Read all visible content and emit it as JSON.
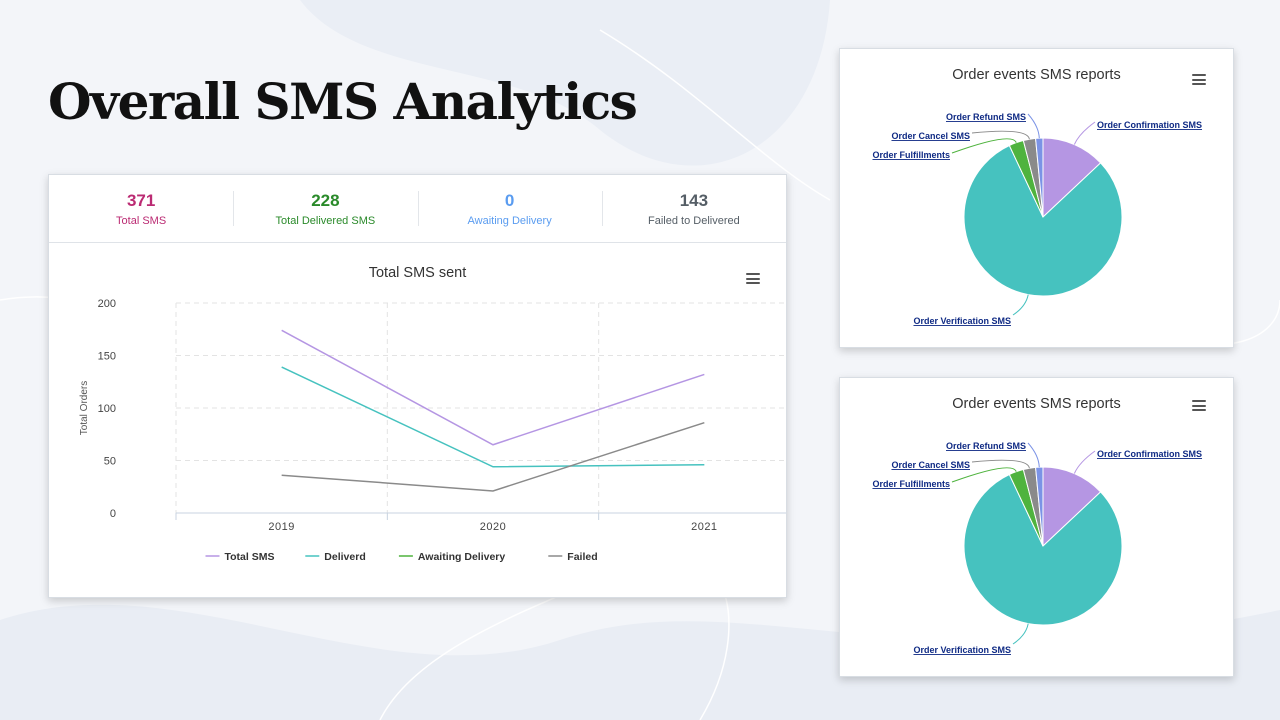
{
  "page": {
    "title": "Overall SMS Analytics"
  },
  "colors": {
    "total_sms": "#bb2b73",
    "delivered": "#2a8a2a",
    "awaiting": "#5a9cf0",
    "failed": "#555e66",
    "series_total": "#b596e3",
    "series_delivered": "#46c2bf",
    "series_awaiting": "#4fb33e",
    "series_failed": "#8a8a8a",
    "pie_label": "#0f2a84"
  },
  "stats": [
    {
      "value": "371",
      "label": "Total SMS"
    },
    {
      "value": "228",
      "label": "Total Delivered SMS"
    },
    {
      "value": "0",
      "label": "Awaiting Delivery"
    },
    {
      "value": "143",
      "label": "Failed to Delivered"
    }
  ],
  "menu_icon": "hamburger-menu-icon",
  "chart_data": [
    {
      "type": "line",
      "title": "Total SMS sent",
      "xlabel": "",
      "ylabel": "Total Orders",
      "categories": [
        "2019",
        "2020",
        "2021"
      ],
      "ylim": [
        0,
        200
      ],
      "yticks": [
        "0",
        "50",
        "100",
        "150",
        "200"
      ],
      "grid": true,
      "legend_position": "bottom",
      "series": [
        {
          "name": "Total SMS",
          "values": [
            174,
            65,
            132
          ],
          "color": "#b596e3"
        },
        {
          "name": "Deliverd",
          "values": [
            139,
            44,
            46
          ],
          "color": "#46c2bf"
        },
        {
          "name": "Awaiting Delivery",
          "values": [
            null,
            null,
            null
          ],
          "color": "#4fb33e"
        },
        {
          "name": "Failed",
          "values": [
            36,
            21,
            86
          ],
          "color": "#8a8a8a"
        }
      ]
    },
    {
      "type": "pie",
      "title": "Order events SMS reports",
      "slices": [
        {
          "label": "Order Confirmation SMS",
          "value": 13,
          "color": "#b596e3"
        },
        {
          "label": "Order Verification SMS",
          "value": 80,
          "color": "#46c2bf"
        },
        {
          "label": "Order Fulfillments",
          "value": 3,
          "color": "#4fb33e"
        },
        {
          "label": "Order Cancel SMS",
          "value": 2.5,
          "color": "#8a8a8a"
        },
        {
          "label": "Order Refund SMS",
          "value": 1.5,
          "color": "#7b93e6"
        }
      ]
    },
    {
      "type": "pie",
      "title": "Order events SMS reports",
      "slices": [
        {
          "label": "Order Confirmation SMS",
          "value": 13,
          "color": "#b596e3"
        },
        {
          "label": "Order Verification SMS",
          "value": 80,
          "color": "#46c2bf"
        },
        {
          "label": "Order Fulfillments",
          "value": 3,
          "color": "#4fb33e"
        },
        {
          "label": "Order Cancel SMS",
          "value": 2.5,
          "color": "#8a8a8a"
        },
        {
          "label": "Order Refund SMS",
          "value": 1.5,
          "color": "#7b93e6"
        }
      ]
    }
  ]
}
